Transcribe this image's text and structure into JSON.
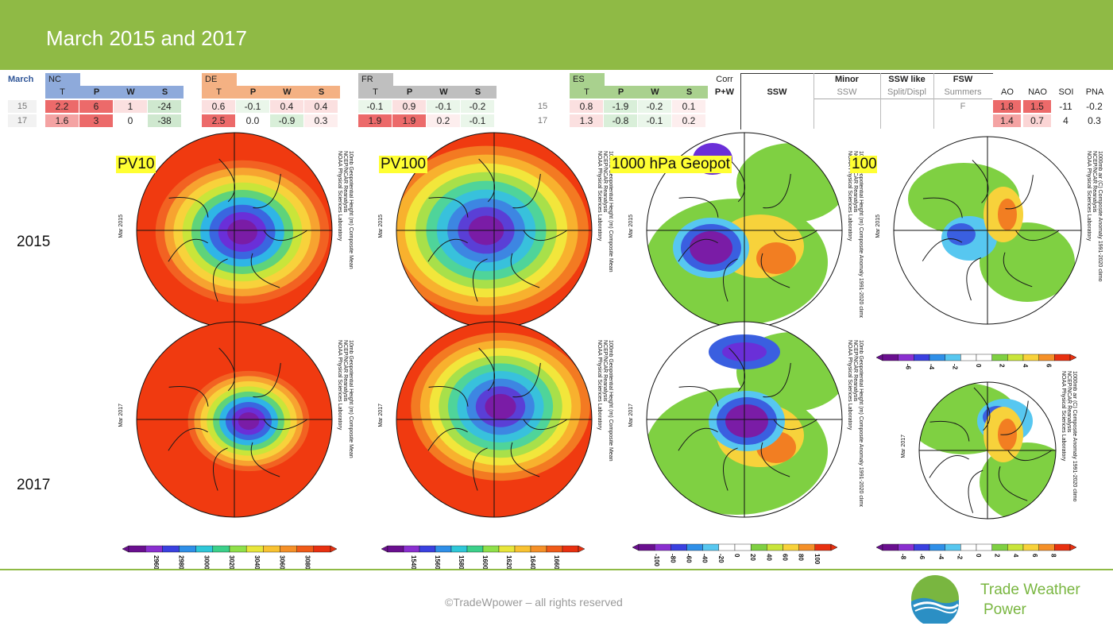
{
  "slide": {
    "title": "March 2015 and 2017"
  },
  "table": {
    "month_label": "March",
    "regions": [
      {
        "name": "NC",
        "color": "#8eaadb",
        "cols": [
          "T",
          "P",
          "W",
          "S"
        ],
        "rows": [
          [
            "2.2",
            "6",
            "1",
            "-24"
          ],
          [
            "1.6",
            "3",
            "0",
            "-38"
          ]
        ]
      },
      {
        "name": "DE",
        "color": "#f4b183",
        "cols": [
          "T",
          "P",
          "W",
          "S"
        ],
        "rows": [
          [
            "0.6",
            "-0.1",
            "0.4",
            "0.4"
          ],
          [
            "2.5",
            "0.0",
            "-0.9",
            "0.3"
          ]
        ]
      },
      {
        "name": "FR",
        "color": "#bfbfbf",
        "cols": [
          "T",
          "P",
          "W",
          "S"
        ],
        "rows": [
          [
            "-0.1",
            "0.9",
            "-0.1",
            "-0.2"
          ],
          [
            "1.9",
            "1.9",
            "0.2",
            "-0.1"
          ]
        ]
      },
      {
        "name": "ES",
        "color": "#a9d18e",
        "cols": [
          "T",
          "P",
          "W",
          "S"
        ],
        "rows": [
          [
            "0.8",
            "-1.9",
            "-0.2",
            "0.1"
          ],
          [
            "1.3",
            "-0.8",
            "-0.1",
            "0.2"
          ]
        ]
      }
    ],
    "year_labels": [
      "15",
      "17"
    ],
    "corr": {
      "top": "Corr",
      "bottom": "P+W"
    },
    "events": {
      "headers": [
        [
          "SSW",
          ""
        ],
        [
          "Minor",
          "SSW"
        ],
        [
          "SSW like",
          "Split/Displ"
        ],
        [
          "FSW",
          "Summers"
        ]
      ],
      "rows": [
        [
          "",
          "",
          "",
          "F"
        ],
        [
          "",
          "",
          "",
          ""
        ]
      ]
    },
    "indices": {
      "headers": [
        "AO",
        "NAO",
        "SOI",
        "PNA"
      ],
      "rows": [
        [
          "1.8",
          "1.5",
          "-11",
          "-0.2"
        ],
        [
          "1.4",
          "0.7",
          "4",
          "0.3"
        ]
      ]
    }
  },
  "row_labels": [
    "2015",
    "2017"
  ],
  "map_labels": {
    "pv10": "PV10",
    "pv100": "PV100",
    "geopot": "1000 hPa Geopot",
    "extra": "100"
  },
  "maps": {
    "credit": "NCEP/NCAR Reanalysis",
    "lab": "NOAA Physical Sciences Laboratory",
    "date_2015": "Mar 2015",
    "date_2017": "Mar 2017",
    "pv10_title": "10mb Geopotential Height (m) Composite Mean",
    "pv100_title": "100mb Geopotential Height (m) Composite Mean",
    "geo_title": "10mb Geopotential Height (m) Composite Anomaly 1991-2020 climo",
    "air_title": "1000mb air (C) Composite Anomaly 1991-2020 climo"
  },
  "colorbars": {
    "pv10": [
      "2960",
      "2980",
      "3000",
      "3020",
      "3040",
      "3060",
      "3080"
    ],
    "pv100": [
      "1540",
      "1560",
      "1580",
      "1600",
      "1620",
      "1640",
      "1660"
    ],
    "geo": [
      "-100",
      "-80",
      "-60",
      "-40",
      "-20",
      "0",
      "20",
      "40",
      "60",
      "80",
      "100"
    ],
    "air_top": [
      "-6",
      "-4",
      "-2",
      "0",
      "2",
      "4",
      "6"
    ],
    "air_bottom": [
      "-8",
      "-6",
      "-4",
      "-2",
      "0",
      "2",
      "4",
      "6",
      "8"
    ]
  },
  "colors": {
    "brand_green": "#8fba45",
    "warm_red": "#f4a3a3",
    "strong_red": "#ec6a6a",
    "cool_green": "#d9efd9"
  },
  "footer": {
    "copyright": "©TradeWpower – all rights reserved",
    "brand_line1": "Trade Weather",
    "brand_line2": "Power"
  }
}
